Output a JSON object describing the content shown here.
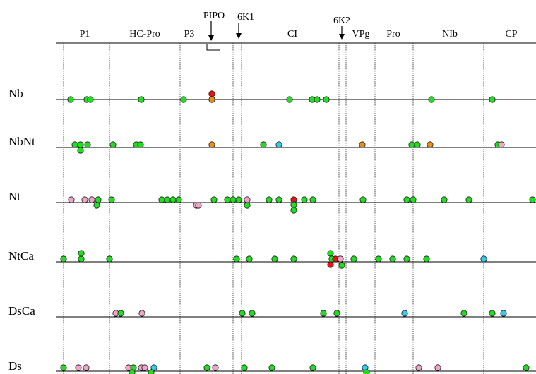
{
  "colors": {
    "green": "#22dd22",
    "pink": "#f0a6c8",
    "orange": "#e8911a",
    "red": "#ee1111",
    "cyan": "#33ccee",
    "stroke": "#1a1a1a"
  },
  "header": {
    "regions": [
      {
        "label": "P1"
      },
      {
        "label": "HC-Pro"
      },
      {
        "label": "P3"
      },
      {
        "label": "CI"
      },
      {
        "label": "VPg"
      },
      {
        "label": "Pro"
      },
      {
        "label": "NIb"
      },
      {
        "label": "CP"
      }
    ],
    "callouts": [
      {
        "label": "PIPO"
      },
      {
        "label": "6K1"
      },
      {
        "label": "6K2"
      }
    ]
  },
  "rows": [
    {
      "label": "Nb"
    },
    {
      "label": "NbNt"
    },
    {
      "label": "Nt"
    },
    {
      "label": "NtCa"
    },
    {
      "label": "DsCa"
    },
    {
      "label": "Ds"
    }
  ]
}
